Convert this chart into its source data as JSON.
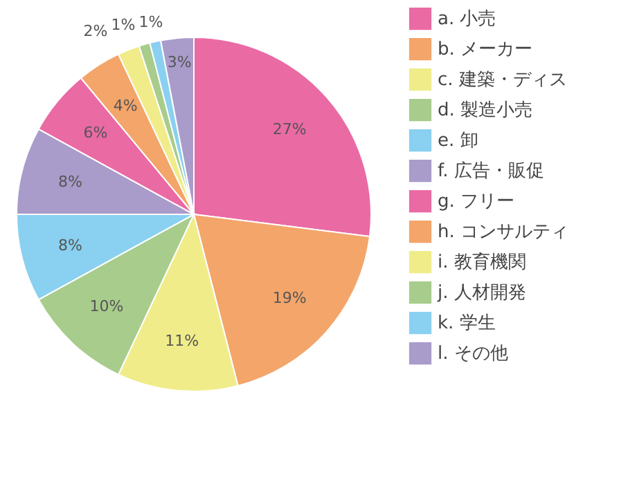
{
  "chart_data": {
    "type": "pie",
    "categories": [
      "a. 小売",
      "b. メーカー",
      "c. 建築・ディス",
      "d. 製造小売",
      "e. 卸",
      "f. 広告・販促",
      "g. フリー",
      "h. コンサルティ",
      "i. 教育機関",
      "j. 人材開発",
      "k. 学生",
      "l. その他"
    ],
    "values": [
      27,
      19,
      11,
      10,
      8,
      8,
      6,
      4,
      2,
      1,
      1,
      3
    ],
    "colors": [
      "#ea6aa4",
      "#f3a56a",
      "#f0ec8a",
      "#a8cc8c",
      "#8ad0f0",
      "#a99ccb",
      "#ea6aa4",
      "#f3a56a",
      "#f0ec8a",
      "#a8cc8c",
      "#8ad0f0",
      "#a99ccb"
    ],
    "value_labels": [
      "27%",
      "19%",
      "11%",
      "10%",
      "8%",
      "8%",
      "6%",
      "4%",
      "2%",
      "1%",
      "1%",
      "3%"
    ],
    "legend": "right"
  }
}
